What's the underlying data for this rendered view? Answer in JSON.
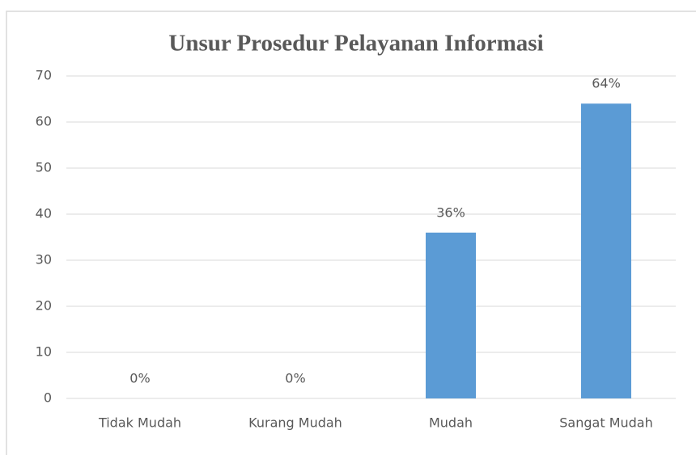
{
  "chart_data": {
    "type": "bar",
    "title": "Unsur Prosedur Pelayanan Informasi",
    "categories": [
      "Tidak Mudah",
      "Kurang Mudah",
      "Mudah",
      "Sangat Mudah"
    ],
    "values": [
      0,
      0,
      36,
      64
    ],
    "value_labels": [
      "0%",
      "0%",
      "36%",
      "64%"
    ],
    "color": "#5b9bd5",
    "ylim": [
      0,
      70
    ],
    "yticks": [
      0,
      10,
      20,
      30,
      40,
      50,
      60,
      70
    ],
    "grid": true
  }
}
